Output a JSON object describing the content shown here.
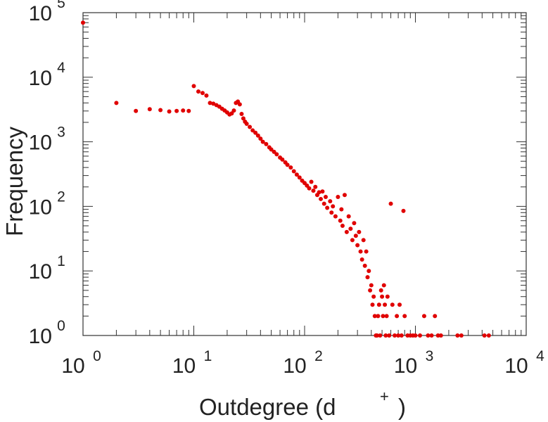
{
  "chart_data": {
    "type": "scatter",
    "xscale": "log",
    "yscale": "log",
    "xlim": [
      1,
      10000
    ],
    "ylim": [
      1,
      100000
    ],
    "xlabel": "Outdegree (d",
    "xlabel_sup": "+",
    "xlabel_close": ")",
    "ylabel": "Frequency",
    "grid": false,
    "x_ticks": [
      {
        "base": "10",
        "exp": "0"
      },
      {
        "base": "10",
        "exp": "1"
      },
      {
        "base": "10",
        "exp": "2"
      },
      {
        "base": "10",
        "exp": "3"
      },
      {
        "base": "10",
        "exp": "4"
      }
    ],
    "y_ticks": [
      {
        "base": "10",
        "exp": "0"
      },
      {
        "base": "10",
        "exp": "1"
      },
      {
        "base": "10",
        "exp": "2"
      },
      {
        "base": "10",
        "exp": "3"
      },
      {
        "base": "10",
        "exp": "4"
      },
      {
        "base": "10",
        "exp": "5"
      }
    ],
    "marker_color": "#e00000",
    "points": [
      [
        1,
        70000
      ],
      [
        2,
        4000
      ],
      [
        3,
        3000
      ],
      [
        4,
        3200
      ],
      [
        5,
        3100
      ],
      [
        6,
        2950
      ],
      [
        7,
        3000
      ],
      [
        8,
        3050
      ],
      [
        9,
        3000
      ],
      [
        10,
        7300
      ],
      [
        11,
        6000
      ],
      [
        12,
        5700
      ],
      [
        13,
        5200
      ],
      [
        14,
        4000
      ],
      [
        15,
        3900
      ],
      [
        16,
        3700
      ],
      [
        17,
        3500
      ],
      [
        18,
        3250
      ],
      [
        19,
        3050
      ],
      [
        20,
        2850
      ],
      [
        21,
        2650
      ],
      [
        22,
        2750
      ],
      [
        23,
        3050
      ],
      [
        24,
        4000
      ],
      [
        25,
        4200
      ],
      [
        26,
        3800
      ],
      [
        27,
        2700
      ],
      [
        28,
        2300
      ],
      [
        29,
        2050
      ],
      [
        30,
        1900
      ],
      [
        32,
        1700
      ],
      [
        34,
        1500
      ],
      [
        36,
        1380
      ],
      [
        38,
        1250
      ],
      [
        40,
        1120
      ],
      [
        42,
        1000
      ],
      [
        45,
        920
      ],
      [
        48,
        820
      ],
      [
        50,
        760
      ],
      [
        53,
        700
      ],
      [
        56,
        640
      ],
      [
        60,
        570
      ],
      [
        63,
        530
      ],
      [
        67,
        480
      ],
      [
        70,
        440
      ],
      [
        75,
        400
      ],
      [
        80,
        350
      ],
      [
        85,
        310
      ],
      [
        90,
        280
      ],
      [
        95,
        250
      ],
      [
        100,
        230
      ],
      [
        105,
        210
      ],
      [
        110,
        190
      ],
      [
        115,
        240
      ],
      [
        120,
        175
      ],
      [
        125,
        200
      ],
      [
        130,
        150
      ],
      [
        135,
        165
      ],
      [
        140,
        130
      ],
      [
        145,
        170
      ],
      [
        150,
        110
      ],
      [
        155,
        140
      ],
      [
        160,
        95
      ],
      [
        170,
        120
      ],
      [
        175,
        80
      ],
      [
        180,
        100
      ],
      [
        190,
        70
      ],
      [
        200,
        140
      ],
      [
        210,
        60
      ],
      [
        215,
        90
      ],
      [
        220,
        50
      ],
      [
        230,
        150
      ],
      [
        240,
        40
      ],
      [
        250,
        70
      ],
      [
        260,
        45
      ],
      [
        270,
        30
      ],
      [
        280,
        55
      ],
      [
        290,
        35
      ],
      [
        300,
        25
      ],
      [
        310,
        40
      ],
      [
        320,
        20
      ],
      [
        330,
        15
      ],
      [
        340,
        30
      ],
      [
        350,
        12
      ],
      [
        360,
        20
      ],
      [
        370,
        8
      ],
      [
        380,
        10
      ],
      [
        390,
        5
      ],
      [
        400,
        6
      ],
      [
        410,
        3
      ],
      [
        420,
        4
      ],
      [
        430,
        2
      ],
      [
        440,
        1
      ],
      [
        450,
        1
      ],
      [
        460,
        2
      ],
      [
        470,
        3
      ],
      [
        480,
        1
      ],
      [
        490,
        5
      ],
      [
        500,
        4
      ],
      [
        510,
        2
      ],
      [
        520,
        6
      ],
      [
        530,
        3
      ],
      [
        540,
        1
      ],
      [
        550,
        2
      ],
      [
        560,
        4
      ],
      [
        580,
        1
      ],
      [
        600,
        110
      ],
      [
        620,
        3
      ],
      [
        650,
        1
      ],
      [
        680,
        2
      ],
      [
        700,
        1
      ],
      [
        720,
        3
      ],
      [
        750,
        1
      ],
      [
        780,
        85
      ],
      [
        800,
        2
      ],
      [
        850,
        1
      ],
      [
        900,
        1
      ],
      [
        950,
        1
      ],
      [
        1000,
        1
      ],
      [
        1100,
        1
      ],
      [
        1200,
        2
      ],
      [
        1300,
        1
      ],
      [
        1400,
        1
      ],
      [
        1500,
        2
      ],
      [
        1600,
        1
      ],
      [
        1700,
        1
      ],
      [
        2400,
        1
      ],
      [
        2600,
        1
      ],
      [
        4200,
        1
      ],
      [
        4600,
        1
      ]
    ]
  }
}
